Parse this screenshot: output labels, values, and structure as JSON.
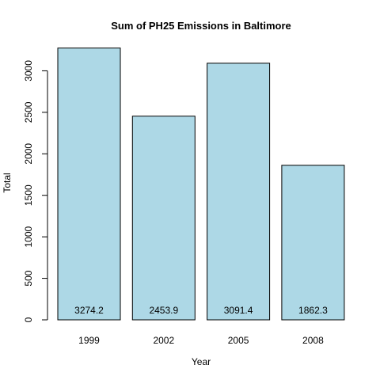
{
  "chart_data": {
    "type": "bar",
    "title": "Sum of PH25 Emissions in Baltimore",
    "xlabel": "Year",
    "ylabel": "Total",
    "categories": [
      "1999",
      "2002",
      "2005",
      "2008"
    ],
    "values": [
      3274.2,
      2453.9,
      3091.4,
      1862.3
    ],
    "data_labels": [
      "3274.2",
      "2453.9",
      "3091.4",
      "1862.3"
    ],
    "y_ticks": [
      0,
      500,
      1000,
      1500,
      2000,
      2500,
      3000
    ],
    "ylim": [
      0,
      3300
    ],
    "bar_color": "#ADD8E6",
    "grid": false,
    "legend": "none"
  }
}
